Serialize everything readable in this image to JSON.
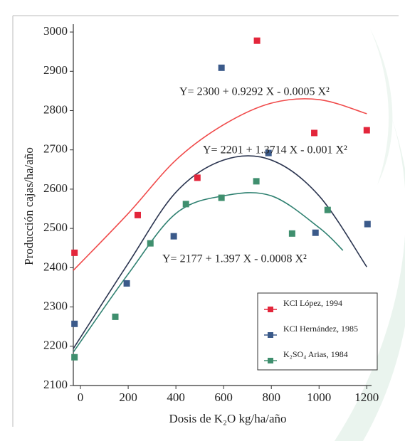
{
  "chart_data": {
    "type": "scatter",
    "x_label": "Dosis de K₂O kg/ha/año",
    "y_label": "Producción cajas/ha/año",
    "xlim": [
      -30,
      1220
    ],
    "xticks": [
      0,
      200,
      400,
      600,
      800,
      1000,
      1200
    ],
    "ylim": [
      2100,
      3020
    ],
    "yticks": [
      2100,
      2200,
      2300,
      2400,
      2500,
      2600,
      2700,
      2800,
      2900,
      3000
    ],
    "annotations": [
      "Y= 2300 + 0.9292 X - 0.0005 X²",
      "Y= 2201 + 1.3714 X - 0.001 X²",
      "Y= 2177 + 1.397 X - 0.0008 X²"
    ],
    "series": [
      {
        "name": "KCl López, 1994",
        "color": "#e3263b",
        "line_color": "#f04a4a",
        "x": [
          -25,
          240,
          490,
          740,
          980,
          1200
        ],
        "values": [
          2438,
          2534,
          2629,
          2978,
          2743,
          2750
        ],
        "fit": {
          "x": [
            -30,
            200,
            400,
            600,
            800,
            1000,
            1200
          ],
          "values": [
            2393,
            2538,
            2674,
            2764,
            2819,
            2828,
            2792
          ]
        }
      },
      {
        "name": "KCl Hernández, 1985",
        "color": "#3b5a8a",
        "line_color": "#2b3550",
        "x": [
          -25,
          194,
          391,
          591,
          788,
          985,
          1203
        ],
        "values": [
          2257,
          2360,
          2480,
          2909,
          2692,
          2489,
          2511
        ],
        "fit": {
          "x": [
            -30,
            200,
            400,
            600,
            800,
            1000,
            1200
          ],
          "values": [
            2194,
            2411,
            2592,
            2674,
            2674,
            2583,
            2402
          ]
        }
      },
      {
        "name": "K₂SO₄ Arias, 1984",
        "color": "#3f8f6e",
        "line_color": "#2e8070",
        "x": [
          -25,
          146,
          293,
          442,
          591,
          737,
          887,
          1036
        ],
        "values": [
          2172,
          2275,
          2462,
          2562,
          2578,
          2620,
          2487,
          2547
        ],
        "fit": {
          "x": [
            -30,
            200,
            400,
            600,
            800,
            1000,
            1100
          ],
          "values": [
            2185,
            2384,
            2538,
            2583,
            2583,
            2502,
            2444
          ]
        }
      }
    ]
  }
}
